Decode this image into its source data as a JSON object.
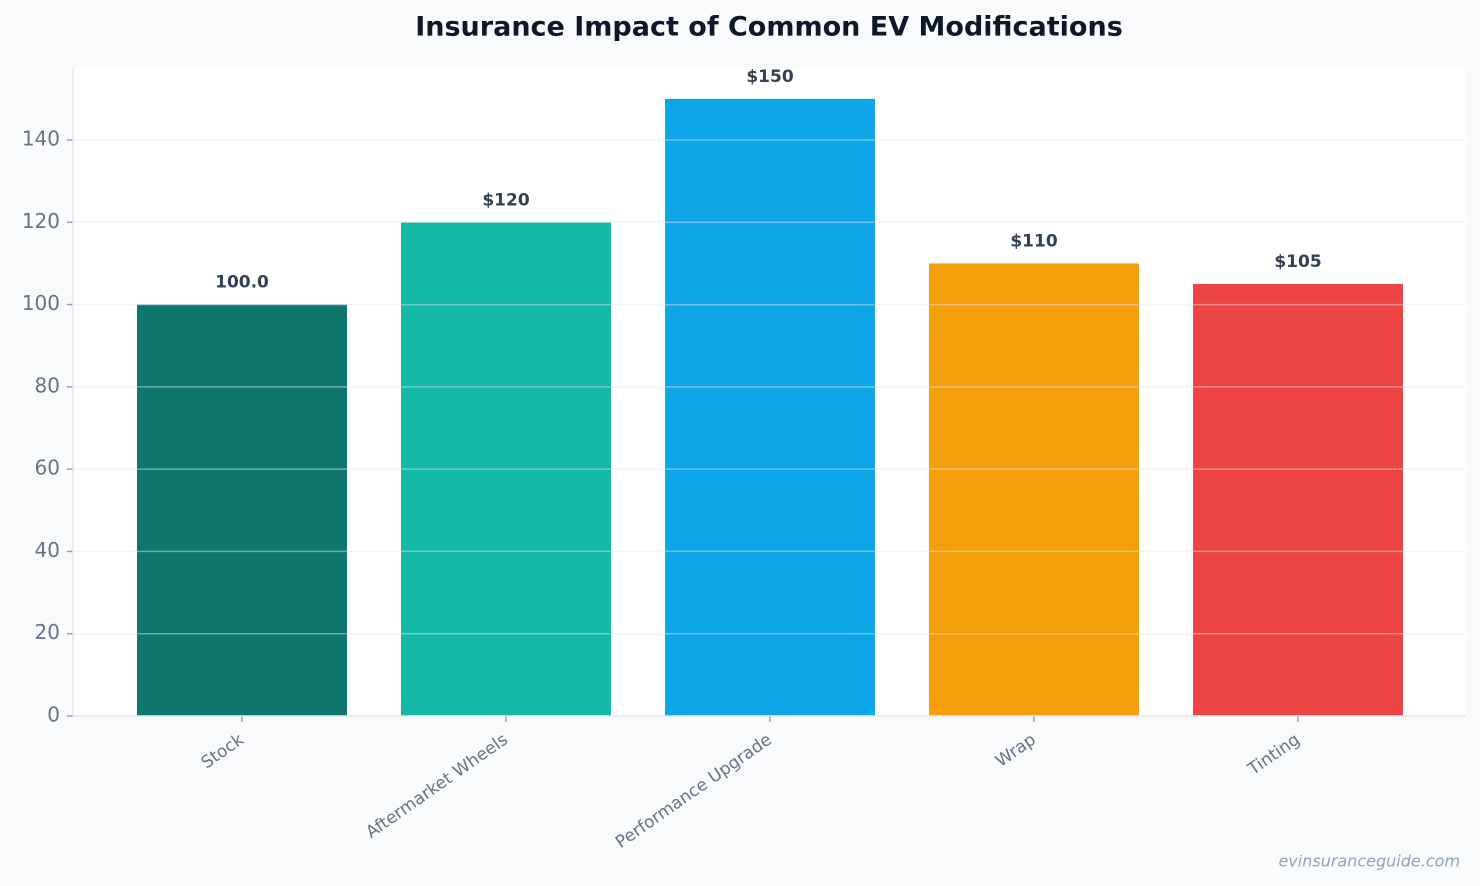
{
  "chart_data": {
    "type": "bar",
    "title": "Insurance Impact of Common EV Modifications",
    "categories": [
      "Stock",
      "Aftermarket Wheels",
      "Performance Upgrade",
      "Wrap",
      "Tinting"
    ],
    "values": [
      100,
      120,
      150,
      110,
      105
    ],
    "value_labels": [
      "100.0",
      "$120",
      "$150",
      "$110",
      "$105"
    ],
    "colors": [
      "#0f766e",
      "#14b8a6",
      "#0ea5e9",
      "#f59e0b",
      "#ef4444"
    ],
    "ylim": [
      0,
      157.5
    ],
    "yticks": [
      0,
      20,
      40,
      60,
      80,
      100,
      120,
      140
    ],
    "grid": true,
    "watermark": "evinsuranceguide.com"
  }
}
